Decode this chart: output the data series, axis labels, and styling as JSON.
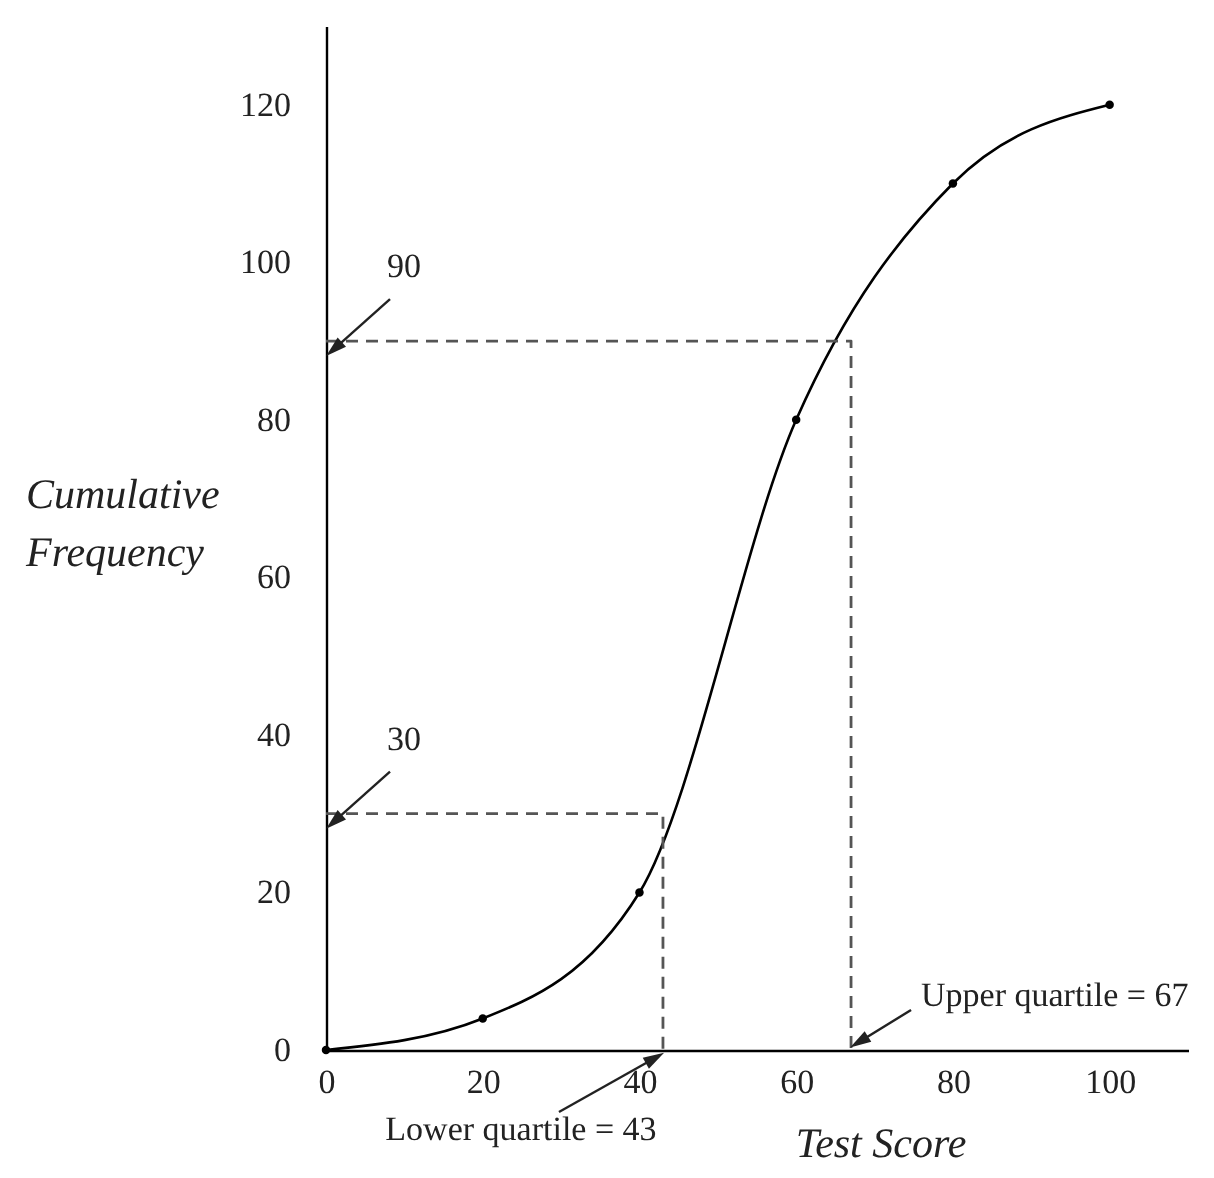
{
  "chart_data": {
    "type": "line",
    "xlabel": "Test Score",
    "ylabel": "Cumulative Frequency",
    "x": [
      0,
      20,
      40,
      60,
      80,
      100
    ],
    "series": [
      {
        "color": "#000000",
        "marker": "circle",
        "line_style": "solid",
        "values": [
          0,
          4,
          20,
          80,
          110,
          120
        ]
      },
      {
        "color": "#555555",
        "marker": "none",
        "line_style": "dashed",
        "x": [
          0,
          43,
          43
        ],
        "values": [
          30,
          30,
          0
        ]
      },
      {
        "color": "#555555",
        "marker": "none",
        "line_style": "dashed",
        "x": [
          0,
          67,
          67
        ],
        "values": [
          90,
          90,
          0
        ]
      }
    ],
    "annotations": [
      {
        "text": "90",
        "x": 0,
        "y": 90
      },
      {
        "text": "30",
        "x": 0,
        "y": 30
      },
      {
        "text": "Lower quartile = 43",
        "x": 43,
        "y": 0
      },
      {
        "text": "Upper quartile = 67",
        "x": 67,
        "y": 0
      }
    ],
    "xlim": [
      0,
      110
    ],
    "ylim": [
      0,
      130
    ],
    "xticks": [
      0,
      20,
      40,
      60,
      80,
      100
    ],
    "yticks": [
      0,
      20,
      40,
      60,
      80,
      100,
      120
    ],
    "grid": false
  }
}
